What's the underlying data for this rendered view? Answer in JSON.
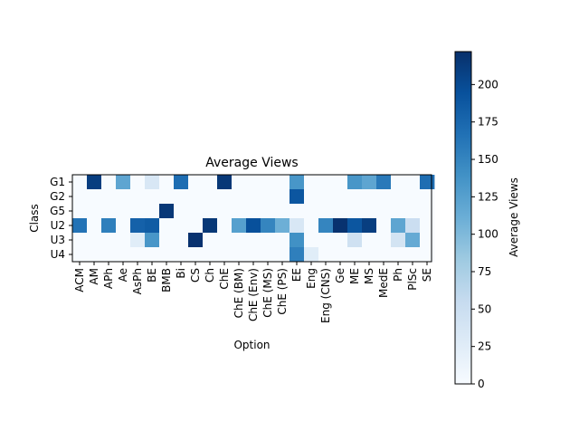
{
  "chart_data": {
    "type": "heatmap",
    "title": "Average Views",
    "xlabel": "Option",
    "ylabel": "Class",
    "x_categories": [
      "ACM",
      "AM",
      "APh",
      "Ae",
      "AsPh",
      "BE",
      "BMB",
      "Bi",
      "CS",
      "Ch",
      "ChE",
      "ChE (BM)",
      "ChE (Env)",
      "ChE (MS)",
      "ChE (PS)",
      "EE",
      "Eng",
      "Eng (CNS)",
      "Ge",
      "ME",
      "MS",
      "MedE",
      "Ph",
      "PlSc",
      "SE"
    ],
    "y_categories": [
      "G1",
      "G2",
      "G5",
      "U2",
      "U3",
      "U4"
    ],
    "values": [
      [
        0,
        210,
        0,
        120,
        0,
        35,
        0,
        170,
        0,
        0,
        215,
        0,
        0,
        0,
        0,
        135,
        0,
        0,
        0,
        135,
        120,
        160,
        0,
        0,
        170
      ],
      [
        0,
        0,
        0,
        0,
        0,
        0,
        0,
        0,
        0,
        0,
        0,
        0,
        0,
        0,
        0,
        190,
        0,
        0,
        0,
        0,
        0,
        0,
        0,
        0,
        0
      ],
      [
        0,
        0,
        0,
        0,
        0,
        0,
        215,
        0,
        0,
        0,
        0,
        0,
        0,
        0,
        0,
        0,
        0,
        0,
        0,
        0,
        0,
        0,
        0,
        0,
        0
      ],
      [
        165,
        0,
        155,
        0,
        180,
        185,
        0,
        0,
        0,
        215,
        0,
        125,
        195,
        150,
        110,
        35,
        0,
        150,
        220,
        190,
        210,
        0,
        120,
        50,
        0
      ],
      [
        0,
        0,
        0,
        0,
        25,
        135,
        0,
        0,
        220,
        0,
        0,
        0,
        0,
        0,
        0,
        140,
        0,
        0,
        0,
        45,
        0,
        0,
        40,
        115,
        0
      ],
      [
        0,
        0,
        0,
        0,
        0,
        0,
        0,
        0,
        0,
        0,
        0,
        0,
        0,
        0,
        0,
        155,
        25,
        0,
        0,
        0,
        0,
        0,
        0,
        0,
        0
      ]
    ],
    "colorbar": {
      "label": "Average Views",
      "min": 0,
      "max": 222,
      "ticks": [
        0,
        25,
        50,
        75,
        100,
        125,
        150,
        175,
        200
      ],
      "colormap": "Blues"
    }
  }
}
